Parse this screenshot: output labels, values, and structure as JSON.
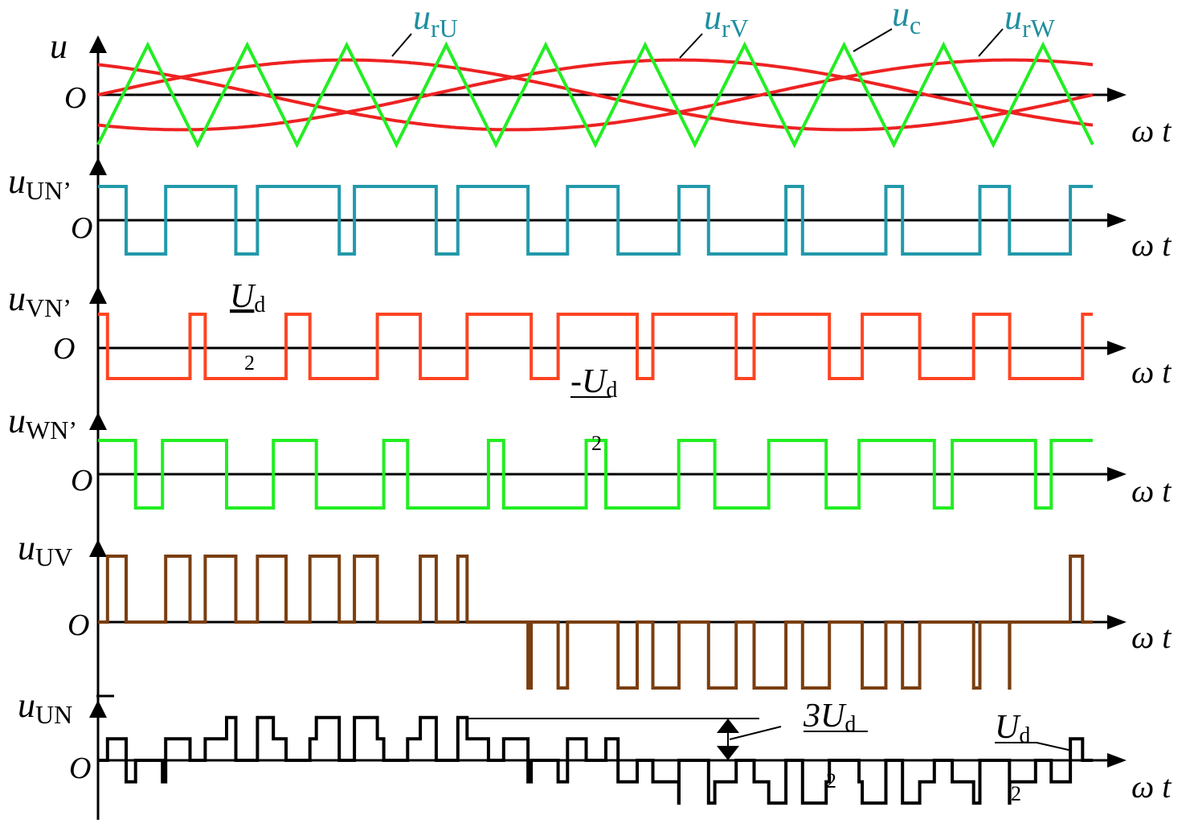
{
  "colors": {
    "modulation": "#ee2222",
    "carrier": "#22ee22",
    "uUN_prime": "#2299aa",
    "uVN_prime": "#ff4422",
    "uWN_prime": "#22ee22",
    "uUV": "#7a3e10",
    "uUN": "#000000",
    "annotation_teal": "#1f8f9f"
  },
  "labels": {
    "omega_t": "ω t",
    "origin": "O",
    "u": "u",
    "urU": {
      "main": "u",
      "sub": "rU"
    },
    "urV": {
      "main": "u",
      "sub": "rV"
    },
    "uc": {
      "main": "u",
      "sub": "c"
    },
    "urW": {
      "main": "u",
      "sub": "rW"
    },
    "uUNp": {
      "main": "u",
      "sub": "UN’"
    },
    "uVNp": {
      "main": "u",
      "sub": "VN’"
    },
    "uWNp": {
      "main": "u",
      "sub": "WN’"
    },
    "uUV": {
      "main": "u",
      "sub": "UV"
    },
    "uUN": {
      "main": "u",
      "sub": "UN"
    },
    "ud_pos": {
      "main": "U",
      "sub": "d",
      "den": "2"
    },
    "ud_neg": {
      "main": "-U",
      "sub": "d",
      "den": "2"
    },
    "three_ud": {
      "main": "3U",
      "sub": "d",
      "den": "2"
    },
    "ud_small": {
      "main": "U",
      "sub": "d",
      "den": "2"
    }
  }
}
